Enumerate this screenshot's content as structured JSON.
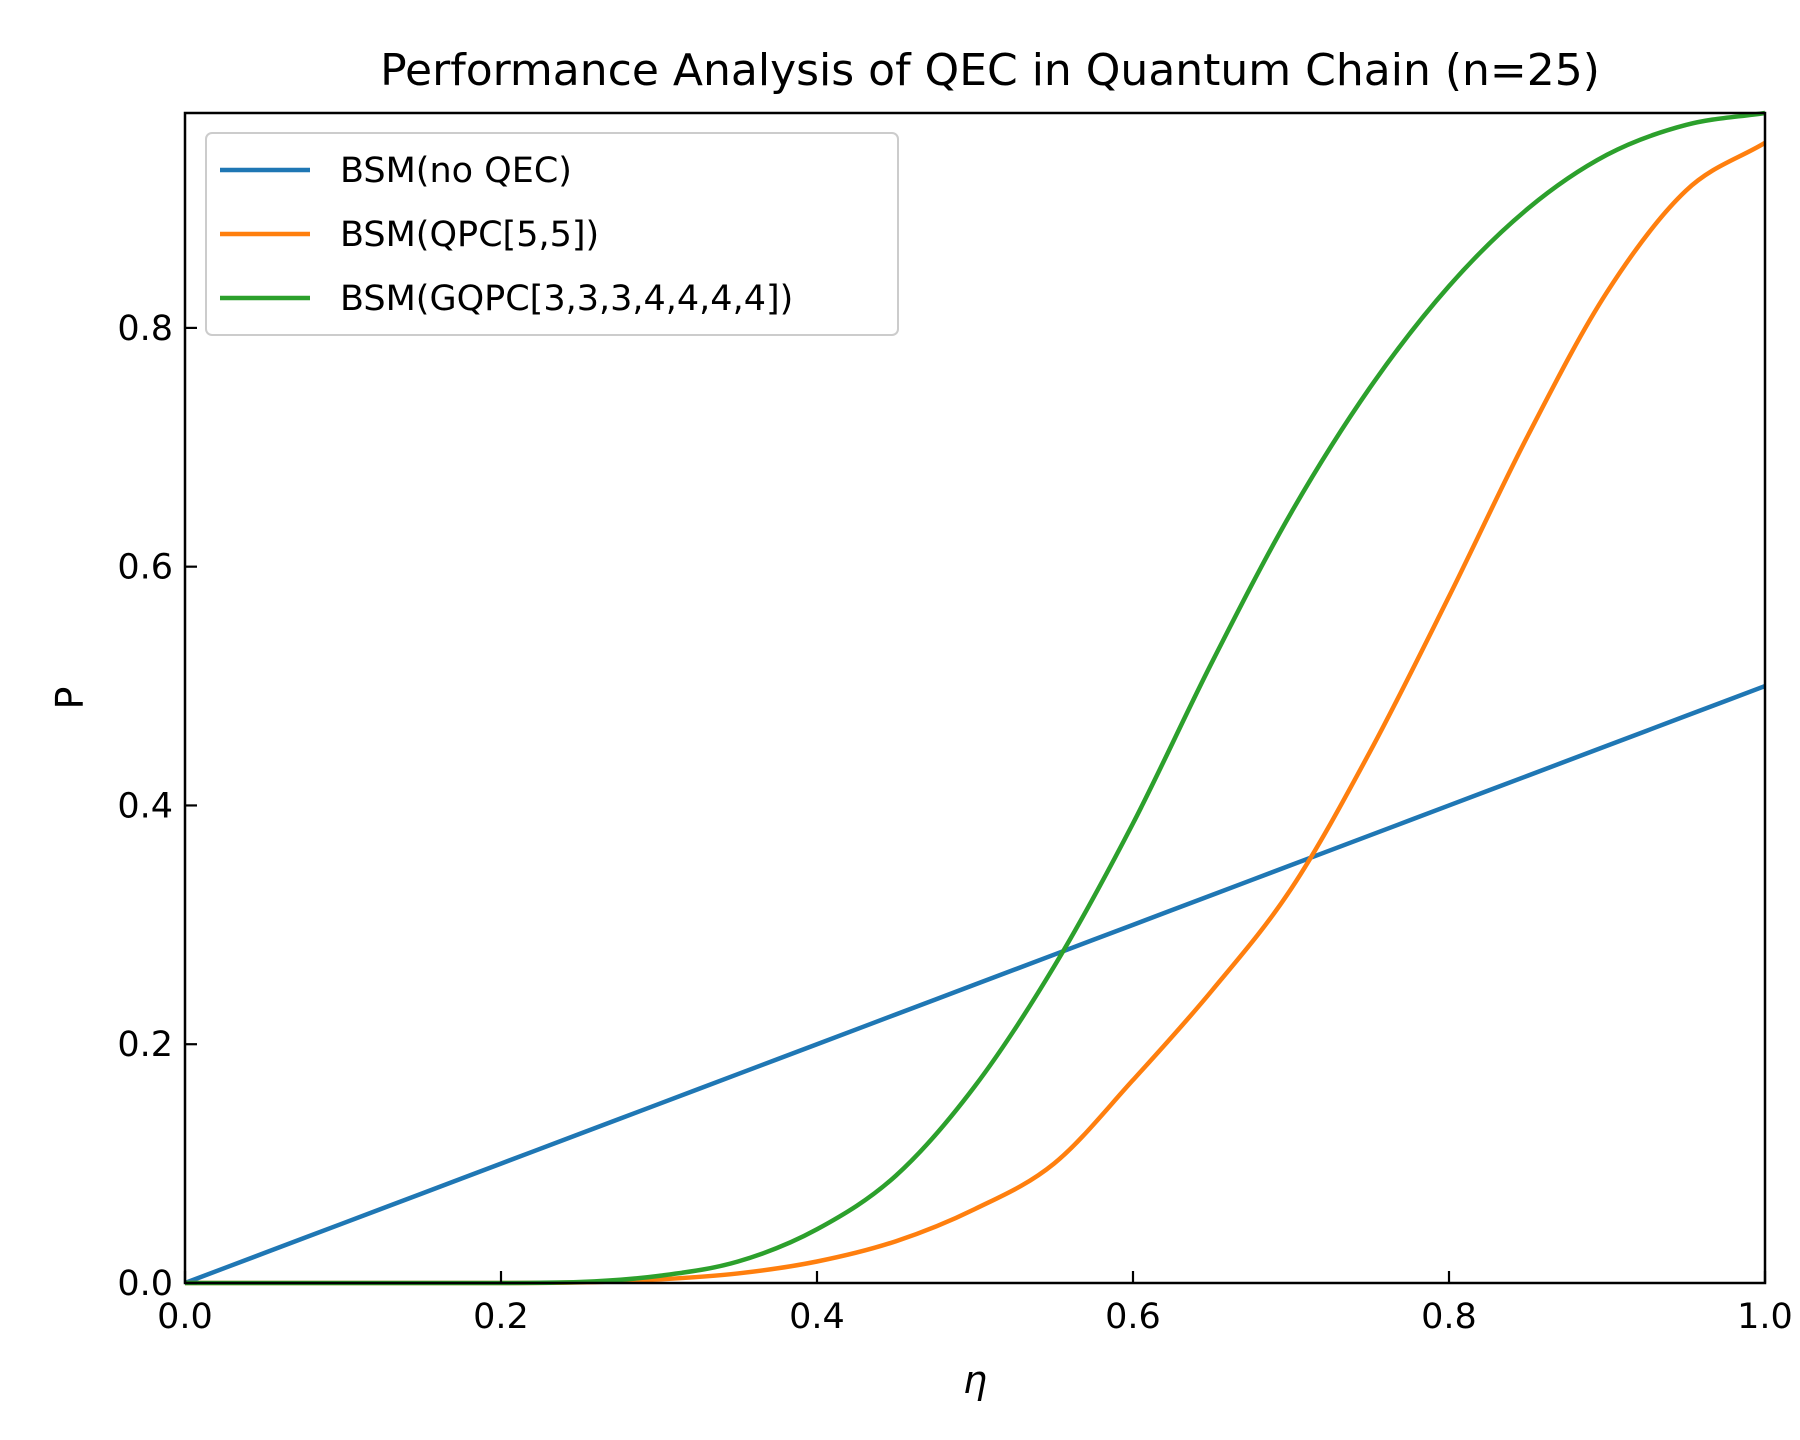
{
  "chart_data": {
    "type": "line",
    "title": "Performance Analysis of QEC in Quantum Chain (n=25)",
    "xlabel": "η",
    "ylabel": "P",
    "xlim": [
      0.0,
      1.0
    ],
    "ylim": [
      0.0,
      0.98
    ],
    "xticks": [
      0.0,
      0.2,
      0.4,
      0.6,
      0.8,
      1.0
    ],
    "xtick_labels": [
      "0.0",
      "0.2",
      "0.4",
      "0.6",
      "0.8",
      "1.0"
    ],
    "yticks": [
      0.0,
      0.2,
      0.4,
      0.6,
      0.8
    ],
    "ytick_labels": [
      "0.0",
      "0.2",
      "0.4",
      "0.6",
      "0.8"
    ],
    "grid": false,
    "legend_position": "top-left",
    "x": [
      0.0,
      0.05,
      0.1,
      0.15,
      0.2,
      0.25,
      0.3,
      0.35,
      0.4,
      0.45,
      0.5,
      0.55,
      0.6,
      0.65,
      0.7,
      0.75,
      0.8,
      0.85,
      0.9,
      0.95,
      1.0
    ],
    "series": [
      {
        "name": "BSM(no QEC)",
        "color": "#1f77b4",
        "values": [
          0.0,
          0.025,
          0.05,
          0.075,
          0.1,
          0.125,
          0.15,
          0.175,
          0.2,
          0.225,
          0.25,
          0.275,
          0.3,
          0.325,
          0.35,
          0.375,
          0.4,
          0.425,
          0.45,
          0.475,
          0.5
        ]
      },
      {
        "name": "BSM(QPC[5,5])",
        "color": "#ff7f0e",
        "values": [
          0.0,
          0.0,
          0.0,
          0.0,
          0.0,
          0.0005,
          0.003,
          0.008,
          0.018,
          0.035,
          0.062,
          0.1,
          0.17,
          0.245,
          0.33,
          0.445,
          0.575,
          0.71,
          0.83,
          0.915,
          0.955
        ]
      },
      {
        "name": "BSM(GQPC[3,3,3,4,4,4,4])",
        "color": "#2ca02c",
        "values": [
          0.0,
          0.0,
          0.0,
          0.0,
          0.0,
          0.0008,
          0.006,
          0.018,
          0.045,
          0.09,
          0.165,
          0.265,
          0.385,
          0.52,
          0.645,
          0.75,
          0.835,
          0.9,
          0.945,
          0.97,
          0.98
        ]
      }
    ]
  }
}
